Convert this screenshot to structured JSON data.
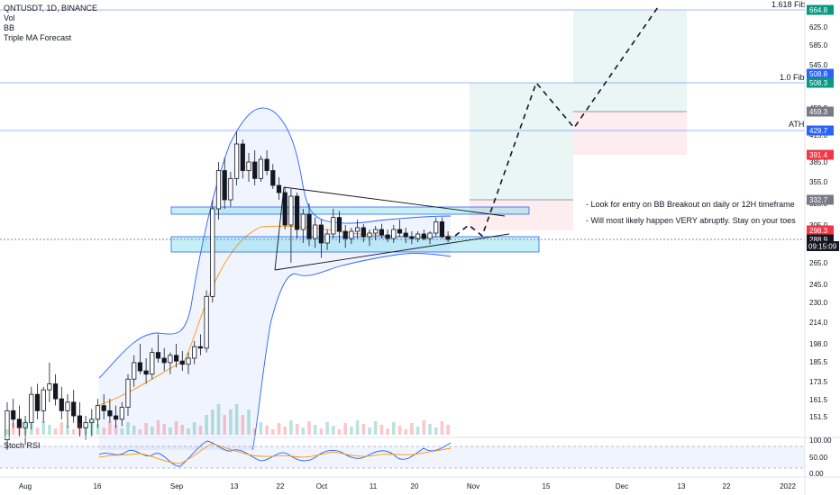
{
  "legend": {
    "symbol": "QNTUSDT, 1D, BINANCE",
    "indicators": [
      "Vol",
      "BB",
      "Triple MA Forecast"
    ]
  },
  "stoch_label": "Stoch RSI",
  "annotations": {
    "note1": "- Look for entry on BB Breakout on daily or 12H timeframe",
    "note2": "- Will most likely happen VERY abruptly. Stay on your toes",
    "fib1618": "1.618 Fib",
    "fib10": "1.0 Fib",
    "ath": "ATH"
  },
  "chart_data": {
    "type": "candlestick",
    "symbol": "QNTUSDT",
    "timeframe": "1D",
    "exchange": "BINANCE",
    "y_ticks": [
      151.5,
      161.5,
      173.5,
      185.5,
      198.0,
      214.0,
      230.0,
      245.0,
      265.0,
      285.0,
      305.0,
      325.0,
      355.0,
      385.0,
      415.0,
      459.3,
      505.0,
      545.0,
      585.0,
      625.0,
      664.8
    ],
    "x_ticks": [
      "Aug",
      "16",
      "Sep",
      "13",
      "22",
      "Oct",
      "11",
      "20",
      "Nov",
      "15",
      "Dec",
      "13",
      "22",
      "2022"
    ],
    "price_badges": [
      {
        "label": "664.8",
        "value": 664.8,
        "color": "#089981"
      },
      {
        "label": "508.8",
        "value": 508.8,
        "color": "#2962ff"
      },
      {
        "label": "508.3",
        "value": 508.3,
        "color": "#089981"
      },
      {
        "label": "459.3",
        "value": 459.3,
        "color": "#787b86"
      },
      {
        "label": "429.7",
        "value": 429.7,
        "color": "#2962ff"
      },
      {
        "label": "391.4",
        "value": 391.4,
        "color": "#f23645"
      },
      {
        "label": "332.7",
        "value": 332.7,
        "color": "#787b86"
      },
      {
        "label": "298.3",
        "value": 298.3,
        "color": "#f23645"
      },
      {
        "label": "288.9",
        "value": 288.9,
        "color": "#131722"
      }
    ],
    "countdown": "09:15:09",
    "horizontal_levels": [
      {
        "label": "1.618 Fib",
        "value": 664.8
      },
      {
        "label": "1.0 Fib",
        "value": 508.3
      },
      {
        "label": "ATH",
        "value": 429.7
      }
    ],
    "stoch_ticks": [
      100.0,
      50.0,
      0.0
    ],
    "candles": [
      [
        138,
        160,
        132,
        155
      ],
      [
        155,
        162,
        145,
        150
      ],
      [
        150,
        158,
        140,
        145
      ],
      [
        145,
        152,
        135,
        148
      ],
      [
        148,
        170,
        144,
        165
      ],
      [
        165,
        172,
        150,
        155
      ],
      [
        155,
        170,
        148,
        168
      ],
      [
        168,
        185,
        160,
        172
      ],
      [
        172,
        178,
        158,
        162
      ],
      [
        162,
        170,
        150,
        155
      ],
      [
        155,
        165,
        145,
        160
      ],
      [
        160,
        168,
        148,
        152
      ],
      [
        152,
        160,
        140,
        145
      ],
      [
        145,
        152,
        138,
        148
      ],
      [
        148,
        156,
        140,
        150
      ],
      [
        150,
        162,
        145,
        158
      ],
      [
        158,
        165,
        150,
        155
      ],
      [
        155,
        162,
        148,
        152
      ],
      [
        152,
        158,
        145,
        150
      ],
      [
        150,
        160,
        146,
        157
      ],
      [
        157,
        178,
        152,
        175
      ],
      [
        175,
        190,
        170,
        185
      ],
      [
        185,
        198,
        178,
        180
      ],
      [
        180,
        188,
        172,
        178
      ],
      [
        178,
        195,
        175,
        192
      ],
      [
        192,
        205,
        185,
        188
      ],
      [
        188,
        195,
        180,
        185
      ],
      [
        185,
        192,
        178,
        190
      ],
      [
        190,
        198,
        182,
        186
      ],
      [
        186,
        193,
        180,
        184
      ],
      [
        184,
        192,
        178,
        188
      ],
      [
        188,
        200,
        184,
        196
      ],
      [
        196,
        205,
        190,
        195
      ],
      [
        195,
        240,
        192,
        235
      ],
      [
        235,
        330,
        230,
        320
      ],
      [
        320,
        385,
        310,
        372
      ],
      [
        372,
        390,
        320,
        330
      ],
      [
        330,
        370,
        322,
        360
      ],
      [
        360,
        420,
        350,
        405
      ],
      [
        405,
        410,
        360,
        372
      ],
      [
        372,
        395,
        355,
        385
      ],
      [
        385,
        398,
        350,
        360
      ],
      [
        360,
        392,
        355,
        388
      ],
      [
        388,
        398,
        365,
        372
      ],
      [
        372,
        382,
        345,
        350
      ],
      [
        350,
        362,
        330,
        340
      ],
      [
        340,
        348,
        300,
        305
      ],
      [
        305,
        345,
        265,
        335
      ],
      [
        335,
        340,
        290,
        300
      ],
      [
        300,
        320,
        285,
        315
      ],
      [
        315,
        325,
        282,
        290
      ],
      [
        290,
        312,
        280,
        305
      ],
      [
        305,
        310,
        270,
        285
      ],
      [
        285,
        300,
        278,
        295
      ],
      [
        295,
        320,
        290,
        312
      ],
      [
        312,
        318,
        285,
        298
      ],
      [
        298,
        305,
        280,
        290
      ],
      [
        290,
        302,
        284,
        298
      ],
      [
        298,
        310,
        290,
        302
      ],
      [
        302,
        306,
        286,
        292
      ],
      [
        292,
        300,
        282,
        296
      ],
      [
        296,
        304,
        288,
        300
      ],
      [
        300,
        306,
        290,
        294
      ],
      [
        294,
        300,
        286,
        290
      ],
      [
        290,
        305,
        285,
        300
      ],
      [
        300,
        310,
        292,
        296
      ],
      [
        296,
        302,
        285,
        292
      ],
      [
        292,
        298,
        284,
        290
      ],
      [
        290,
        298,
        286,
        295
      ],
      [
        295,
        300,
        288,
        290
      ],
      [
        290,
        298,
        284,
        296
      ],
      [
        296,
        312,
        292,
        308
      ],
      [
        308,
        312,
        290,
        292
      ],
      [
        292,
        298,
        286,
        289
      ]
    ]
  }
}
